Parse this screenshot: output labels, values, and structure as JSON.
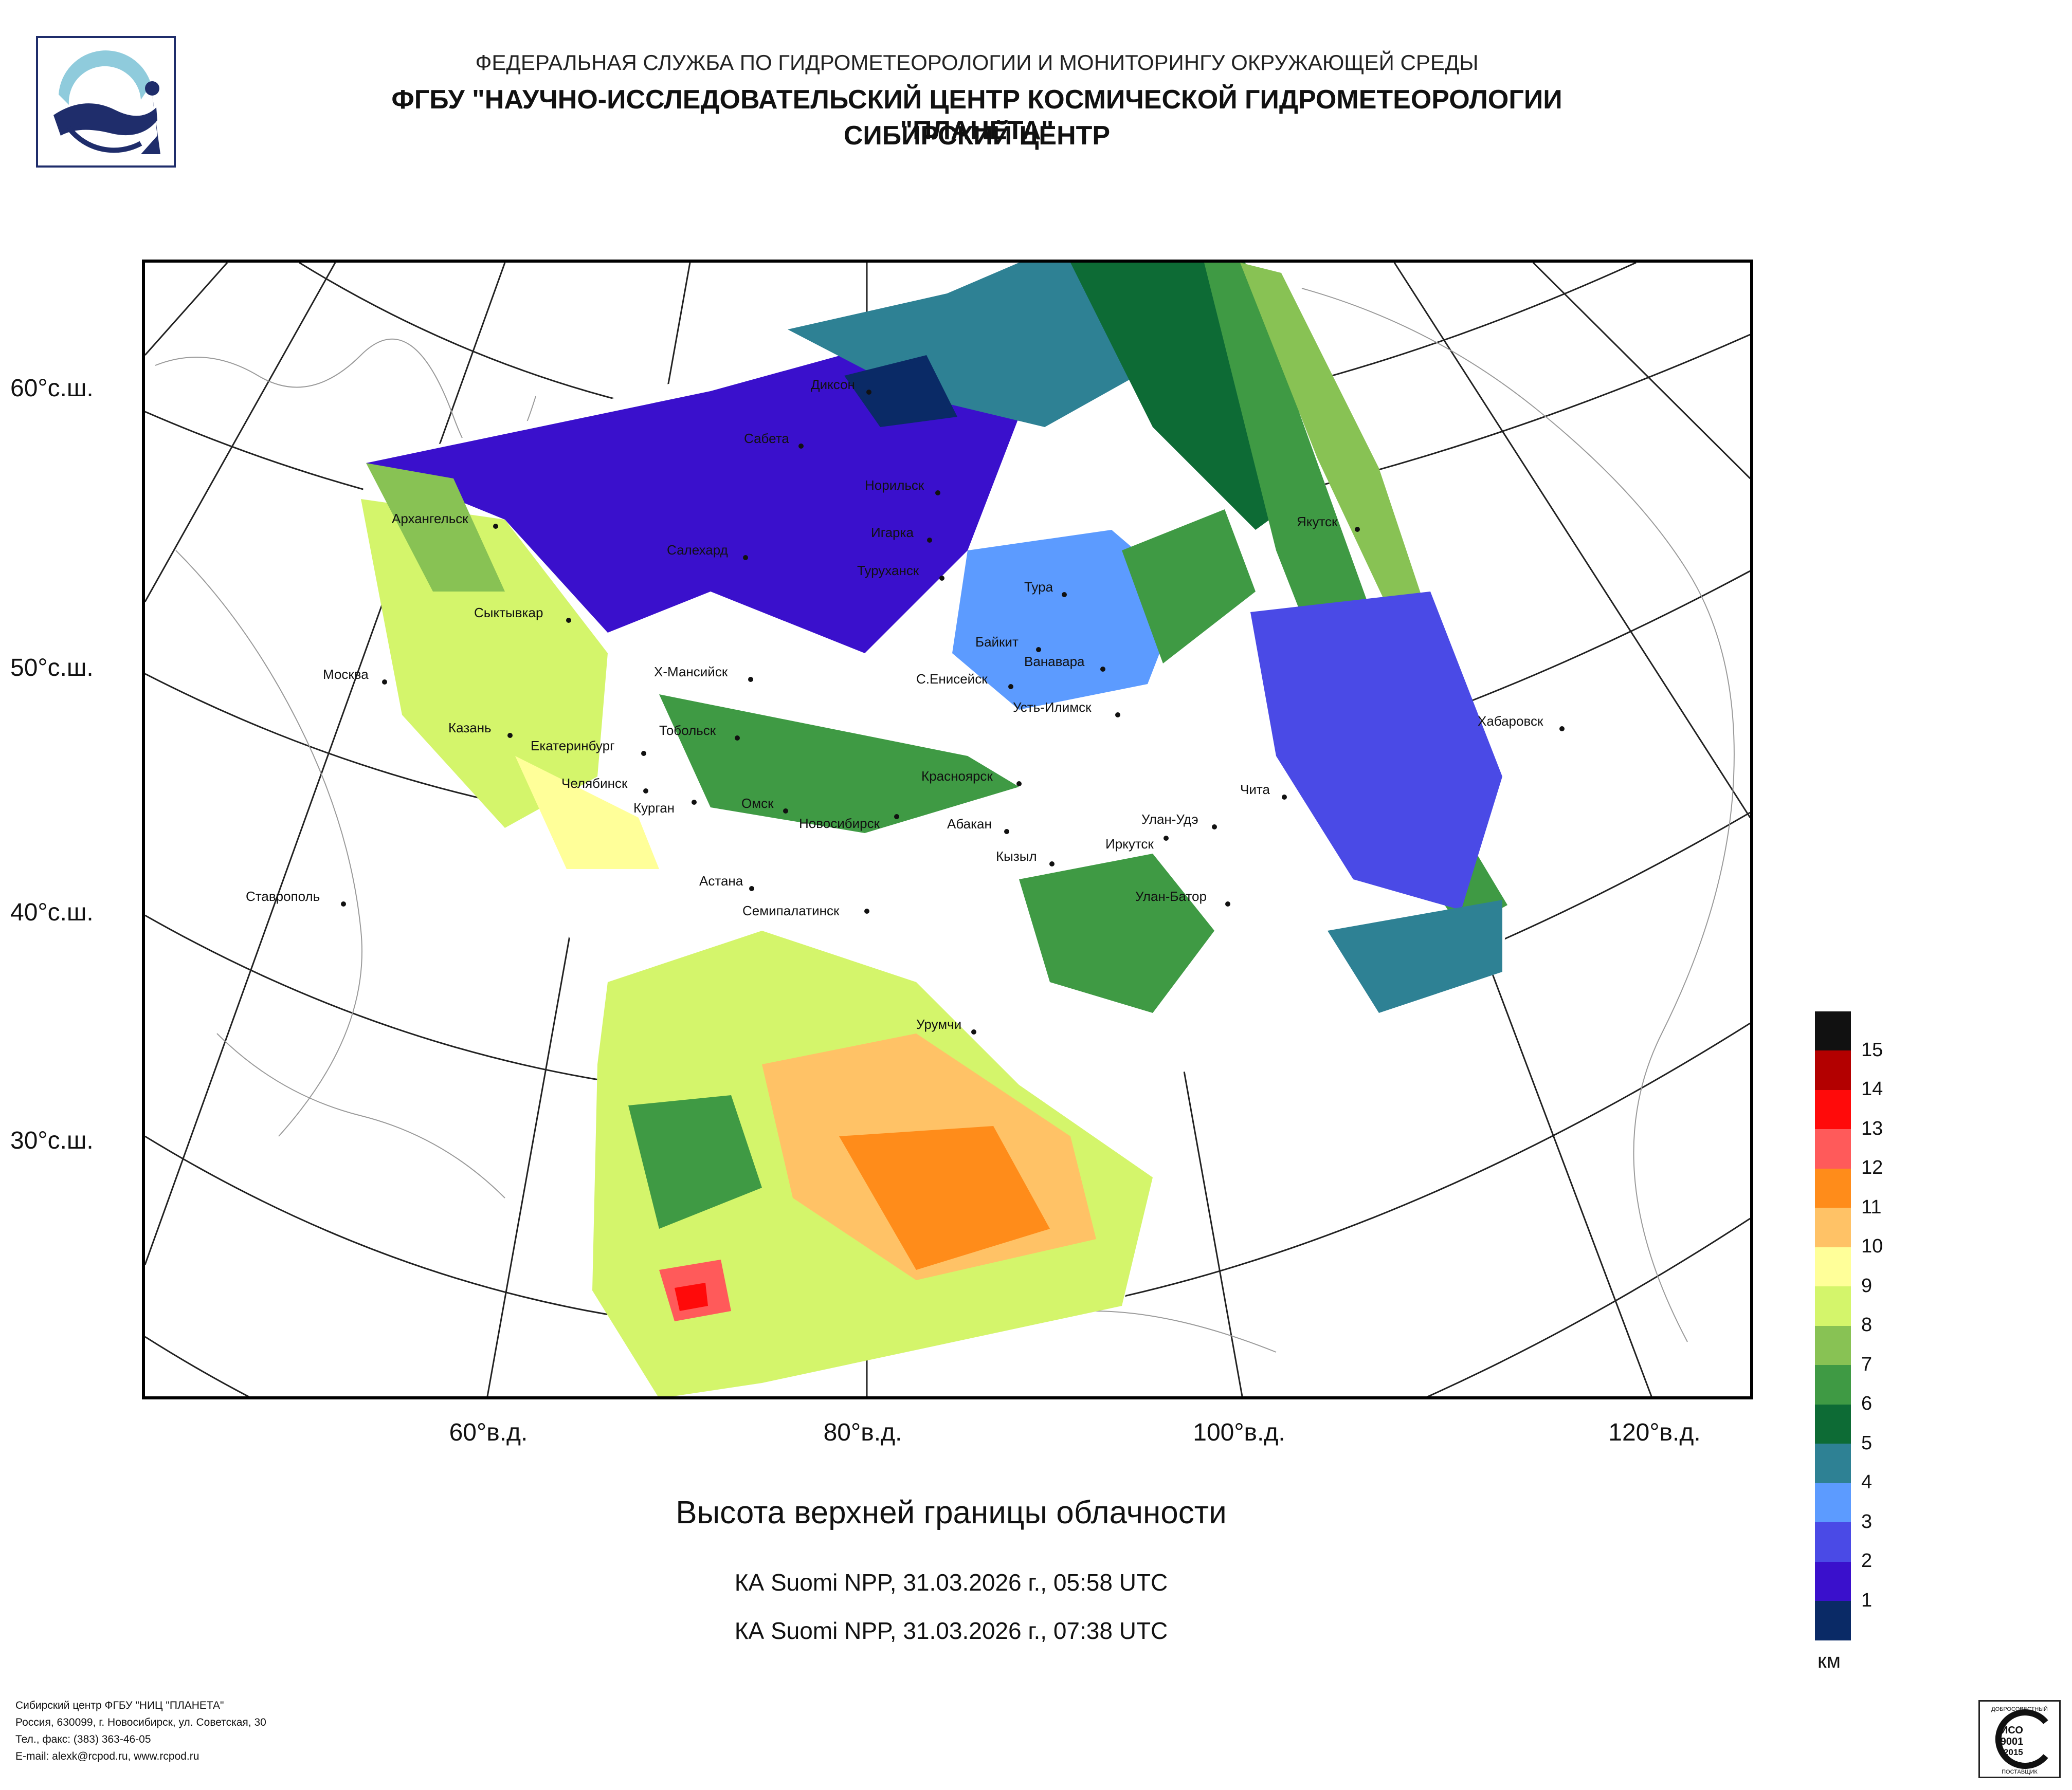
{
  "header": {
    "agency": "ФЕДЕРАЛЬНАЯ СЛУЖБА ПО ГИДРОМЕТЕОРОЛОГИИ И МОНИТОРИНГУ ОКРУЖАЮЩЕЙ СРЕДЫ",
    "center": "ФГБУ \"НАУЧНО-ИССЛЕДОВАТЕЛЬСКИЙ ЦЕНТР КОСМИЧЕСКОЙ ГИДРОМЕТЕОРОЛОГИИ \"ПЛАНЕТА\"",
    "branch": "СИБИРСКИЙ ЦЕНТР"
  },
  "map": {
    "lat_labels": [
      "60°с.ш.",
      "50°с.ш.",
      "40°с.ш.",
      "30°с.ш."
    ],
    "lon_labels": [
      "60°в.д.",
      "80°в.д.",
      "100°в.д.",
      "120°в.д."
    ],
    "cities": [
      "Диксон",
      "Сабета",
      "Норильск",
      "Архангельск",
      "Игарка",
      "Салехард",
      "Туруханск",
      "Якутск",
      "Тура",
      "Сыктывкар",
      "Байкит",
      "Ванавара",
      "Москва",
      "Х-Мансийск",
      "С.Енисейск",
      "Усть-Илимск",
      "Хабаровск",
      "Казань",
      "Тобольск",
      "Екатеринбург",
      "Красноярск",
      "Челябинск",
      "Курган",
      "Омск",
      "Новосибирск",
      "Чита",
      "Абакан",
      "Улан-Удэ",
      "Иркутск",
      "Кызыл",
      "Астана",
      "Ставрополь",
      "Улан-Батор",
      "Семипалатинск",
      "Урумчи"
    ]
  },
  "product": {
    "title": "Высота верхней границы облачности",
    "pass_1": "КА Suomi NPP, 31.03.2026 г., 05:58 UTC",
    "pass_2": "КА Suomi NPP, 31.03.2026 г., 07:38 UTC"
  },
  "legend": {
    "unit": "км",
    "levels": [
      "15",
      "14",
      "13",
      "12",
      "11",
      "10",
      "9",
      "8",
      "7",
      "6",
      "5",
      "4",
      "3",
      "2",
      "1"
    ],
    "colors": [
      "#111111",
      "#b30000",
      "#ff0a0a",
      "#ff5a5a",
      "#ff8c1a",
      "#ffc266",
      "#ffff99",
      "#d4f56b",
      "#88c254",
      "#3f9a44",
      "#0d6b35",
      "#2e8194",
      "#5c9bff",
      "#4a4ae6",
      "#3a10cc",
      "#0a2a66"
    ]
  },
  "footer": {
    "line1": "Сибирский центр ФГБУ \"НИЦ \"ПЛАНЕТА\"",
    "line2": "Россия, 630099, г. Новосибирск, ул. Советская, 30",
    "line3": "Тел., факс: (383) 363-46-05",
    "line4": "E-mail: alexk@rcpod.ru, www.rcpod.ru"
  },
  "iso_badge": {
    "top_text": "ДОБРОСОВЕСТНЫЙ",
    "line1": "ИСО",
    "line2": "9001",
    "line3": "-2015",
    "bottom_text": "ПОСТАВЩИК"
  }
}
